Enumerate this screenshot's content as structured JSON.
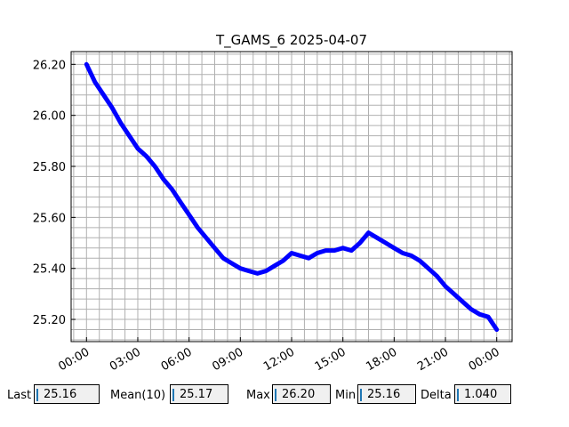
{
  "chart_data": {
    "type": "line",
    "title": "T_GAMS_6 2025-04-07",
    "xlabel": "",
    "ylabel": "",
    "x_unit": "hours",
    "xlim": [
      -0.9,
      24.9
    ],
    "ylim": [
      25.113,
      26.25
    ],
    "x_tick_labels": [
      "00:00",
      "03:00",
      "06:00",
      "09:00",
      "12:00",
      "15:00",
      "18:00",
      "21:00",
      "00:00"
    ],
    "x_tick_values": [
      0,
      3,
      6,
      9,
      12,
      15,
      18,
      21,
      24
    ],
    "y_tick_labels": [
      "25.20",
      "25.40",
      "25.60",
      "25.80",
      "26.00",
      "26.20"
    ],
    "y_tick_values": [
      25.2,
      25.4,
      25.6,
      25.8,
      26.0,
      26.2
    ],
    "grid": true,
    "line_color": "#0000ff",
    "series": [
      {
        "x": [
          0,
          0.5,
          1.0,
          1.5,
          2.0,
          2.5,
          3.0,
          3.5,
          4.0,
          4.5,
          5.0,
          5.5,
          6.0,
          6.5,
          7.0,
          7.5,
          8.0,
          8.5,
          9.0,
          9.5,
          10.0,
          10.5,
          11.0,
          11.5,
          12.0,
          12.5,
          13.0,
          13.5,
          14.0,
          14.5,
          15.0,
          15.5,
          16.0,
          16.5,
          17.0,
          17.5,
          18.0,
          18.5,
          19.0,
          19.5,
          20.0,
          20.5,
          21.0,
          21.5,
          22.0,
          22.5,
          23.0,
          23.5,
          24.0
        ],
        "values": [
          26.2,
          26.13,
          26.08,
          26.03,
          25.97,
          25.92,
          25.87,
          25.84,
          25.8,
          25.75,
          25.71,
          25.66,
          25.61,
          25.56,
          25.52,
          25.48,
          25.44,
          25.42,
          25.4,
          25.39,
          25.38,
          25.39,
          25.41,
          25.43,
          25.46,
          25.45,
          25.44,
          25.46,
          25.47,
          25.47,
          25.48,
          25.47,
          25.5,
          25.54,
          25.52,
          25.5,
          25.48,
          25.46,
          25.45,
          25.43,
          25.4,
          25.37,
          25.33,
          25.3,
          25.27,
          25.24,
          25.22,
          25.21,
          25.16
        ]
      }
    ]
  },
  "stats": {
    "last_label": "Last",
    "last_value": "25.16",
    "mean_label": "Mean(10)",
    "mean_value": "25.17",
    "max_label": "Max",
    "max_value": "26.20",
    "min_label": "Min",
    "min_value": "25.16",
    "delta_label": "Delta",
    "delta_value": "1.040"
  }
}
